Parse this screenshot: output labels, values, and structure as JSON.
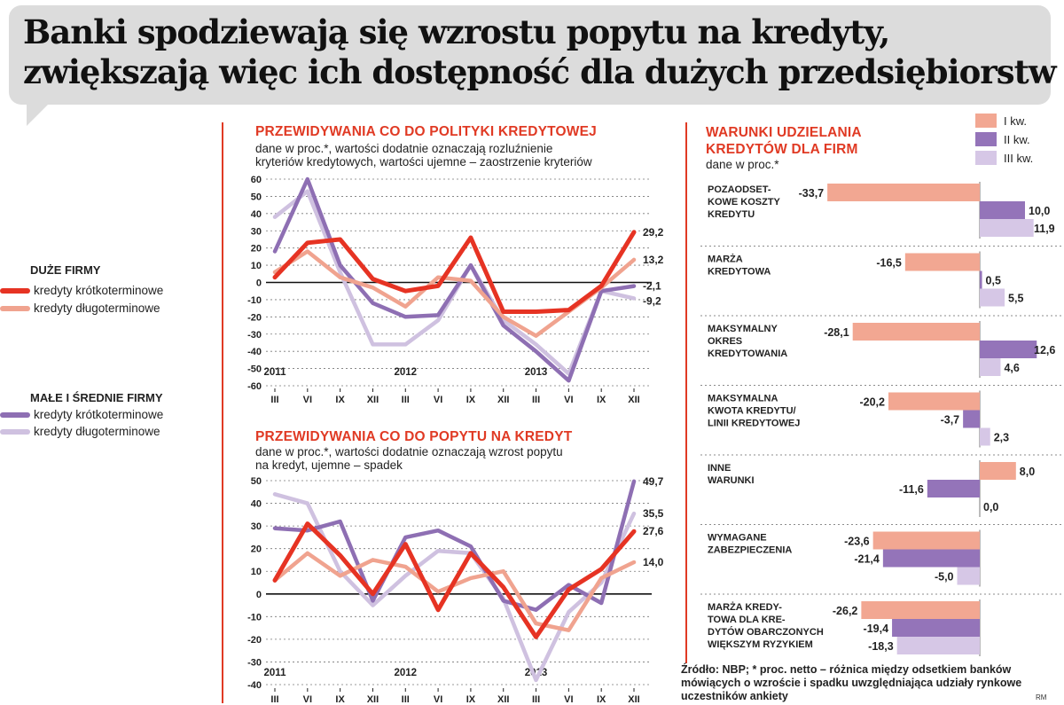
{
  "title_line1": "Banki spodziewają się wzrostu popytu na kredyty,",
  "title_line2": "zwiększają więc ich dostępność dla dużych przedsiębiorstw",
  "legend": {
    "large_head": "DUŻE FIRMY",
    "small_head": "MAŁE I ŚREDNIE FIRMY",
    "short_label": "kredyty krótkoterminowe",
    "long_label": "kredyty długoterminowe"
  },
  "colors": {
    "large_short": "#e63323",
    "large_long": "#f0a38f",
    "small_short": "#8e6fb3",
    "small_long": "#cfc1e0",
    "bar_q1": "#f2a792",
    "bar_q2": "#9474b9",
    "bar_q3": "#d6c7e6",
    "accent": "#e03a24"
  },
  "chart_data": [
    {
      "type": "line",
      "title": "PRZEWIDYWANIA CO DO POLITYKI KREDYTOWEJ",
      "subtitle_line1": "dane w proc.*, wartości dodatnie oznaczają rozluźnienie",
      "subtitle_line2": "kryteriów kredytowych, wartości ujemne – zaostrzenie kryteriów",
      "categories": [
        "III",
        "VI",
        "IX",
        "XII",
        "III",
        "VI",
        "IX",
        "XII",
        "III",
        "VI",
        "IX",
        "XII"
      ],
      "years": [
        {
          "label": "2011",
          "index": 0
        },
        {
          "label": "2012",
          "index": 4
        },
        {
          "label": "2013",
          "index": 8
        }
      ],
      "yticks": [
        "60",
        "50",
        "40",
        "30",
        "20",
        "10",
        "0",
        "-10",
        "-20",
        "-30",
        "-40",
        "-50",
        "-60"
      ],
      "ylim": [
        -60,
        60
      ],
      "series": [
        {
          "name": "Duże firmy – kredyty krótkoterminowe",
          "color_key": "large_short",
          "values": [
            3,
            23,
            25,
            2,
            -5,
            -2,
            26,
            -17,
            -17,
            -16,
            -2,
            29.2
          ]
        },
        {
          "name": "Duże firmy – kredyty długoterminowe",
          "color_key": "large_long",
          "values": [
            6,
            18,
            3,
            -3,
            -14,
            3,
            1,
            -20,
            -31,
            -17,
            -3,
            13.2
          ]
        },
        {
          "name": "Małe i średnie firmy – kredyty krótkoterminowe",
          "color_key": "small_short",
          "values": [
            18,
            60,
            10,
            -12,
            -20,
            -19,
            10,
            -25,
            -40,
            -57,
            -5,
            -2.1
          ]
        },
        {
          "name": "Małe i średnie firmy – kredyty długoterminowe",
          "color_key": "small_long",
          "values": [
            38,
            53,
            6,
            -36,
            -36,
            -22,
            10,
            -22,
            -36,
            -53,
            -5,
            -9.2
          ]
        }
      ],
      "end_labels": [
        "29,2",
        "13,2",
        "-2,1",
        "-9,2"
      ]
    },
    {
      "type": "line",
      "title": "PRZEWIDYWANIA CO DO POPYTU NA KREDYT",
      "subtitle_line1": "dane w proc.*, wartości dodatnie oznaczają wzrost popytu",
      "subtitle_line2": "na kredyt, ujemne – spadek",
      "categories": [
        "III",
        "VI",
        "IX",
        "XII",
        "III",
        "VI",
        "IX",
        "XII",
        "III",
        "VI",
        "IX",
        "XII"
      ],
      "years": [
        {
          "label": "2011",
          "index": 0
        },
        {
          "label": "2012",
          "index": 4
        },
        {
          "label": "2013",
          "index": 8
        }
      ],
      "yticks": [
        "50",
        "40",
        "30",
        "20",
        "10",
        "0",
        "-10",
        "-20",
        "-30",
        "-40"
      ],
      "ylim": [
        -40,
        50
      ],
      "series": [
        {
          "name": "Duże firmy – kredyty krótkoterminowe",
          "color_key": "large_short",
          "values": [
            6,
            31,
            17,
            0,
            22,
            -7,
            18,
            3,
            -19,
            2,
            11,
            27.6
          ]
        },
        {
          "name": "Duże firmy – kredyty długoterminowe",
          "color_key": "large_long",
          "values": [
            6,
            18,
            8,
            15,
            12,
            1,
            7,
            10,
            -13,
            -16,
            7,
            14.0
          ]
        },
        {
          "name": "Małe i średnie firmy – kredyty krótkoterminowe",
          "color_key": "small_short",
          "values": [
            29,
            28,
            32,
            -3,
            25,
            28,
            21,
            -3,
            -7,
            4,
            -4,
            49.7
          ]
        },
        {
          "name": "Małe i średnie firmy – kredyty długoterminowe",
          "color_key": "small_long",
          "values": [
            44,
            40,
            10,
            -5,
            8,
            19,
            18,
            -2,
            -38,
            -8,
            5,
            35.5
          ]
        }
      ],
      "end_labels": [
        "49,7",
        "35,5",
        "27,6",
        "14,0"
      ]
    },
    {
      "type": "bar",
      "title_line1": "WARUNKI UDZIELANIA",
      "title_line2": "KREDYTÓW DLA FIRM",
      "subtitle": "dane w proc.*",
      "legend": [
        "I kw.",
        "II kw.",
        "III kw."
      ],
      "categories": [
        {
          "lines": [
            "POZAODSET-",
            "KOWE KOSZTY",
            "KREDYTU"
          ],
          "values": [
            -33.7,
            10.0,
            11.9
          ],
          "labels": [
            "-33,7",
            "10,0",
            "11,9"
          ]
        },
        {
          "lines": [
            "MARŻA",
            "KREDYTOWA"
          ],
          "values": [
            -16.5,
            0.5,
            5.5
          ],
          "labels": [
            "-16,5",
            "0,5",
            "5,5"
          ]
        },
        {
          "lines": [
            "MAKSYMALNY",
            "OKRES",
            "KREDYTOWANIA"
          ],
          "values": [
            -28.1,
            12.6,
            4.6
          ],
          "labels": [
            "-28,1",
            "12,6",
            "4,6"
          ]
        },
        {
          "lines": [
            "MAKSYMALNA",
            "KWOTA KREDYTU/",
            "LINII KREDYTOWEJ"
          ],
          "values": [
            -20.2,
            -3.7,
            2.3
          ],
          "labels": [
            "-20,2",
            "-3,7",
            "2,3"
          ]
        },
        {
          "lines": [
            "INNE",
            "WARUNKI"
          ],
          "values": [
            8.0,
            -11.6,
            0.0
          ],
          "labels": [
            "8,0",
            "-11,6",
            "0,0"
          ]
        },
        {
          "lines": [
            "WYMAGANE",
            "ZABEZPIECZENIA"
          ],
          "values": [
            -23.6,
            -21.4,
            -5.0
          ],
          "labels": [
            "-23,6",
            "-21,4",
            "-5,0"
          ]
        },
        {
          "lines": [
            "MARŻA KREDY-",
            "TOWA DLA KRE-",
            "DYTÓW OBARCZONYCH",
            "WIĘKSZYM RYZYKIEM"
          ],
          "values": [
            -26.2,
            -19.4,
            -18.3
          ],
          "labels": [
            "-26,2",
            "-19,4",
            "-18,3"
          ]
        }
      ]
    }
  ],
  "footnote": "Źródło: NBP; * proc. netto – różnica między odsetkiem banków mówiących o wzroście i spadku uwzględniająca udziały rynkowe uczestników ankiety",
  "credit": "RM"
}
